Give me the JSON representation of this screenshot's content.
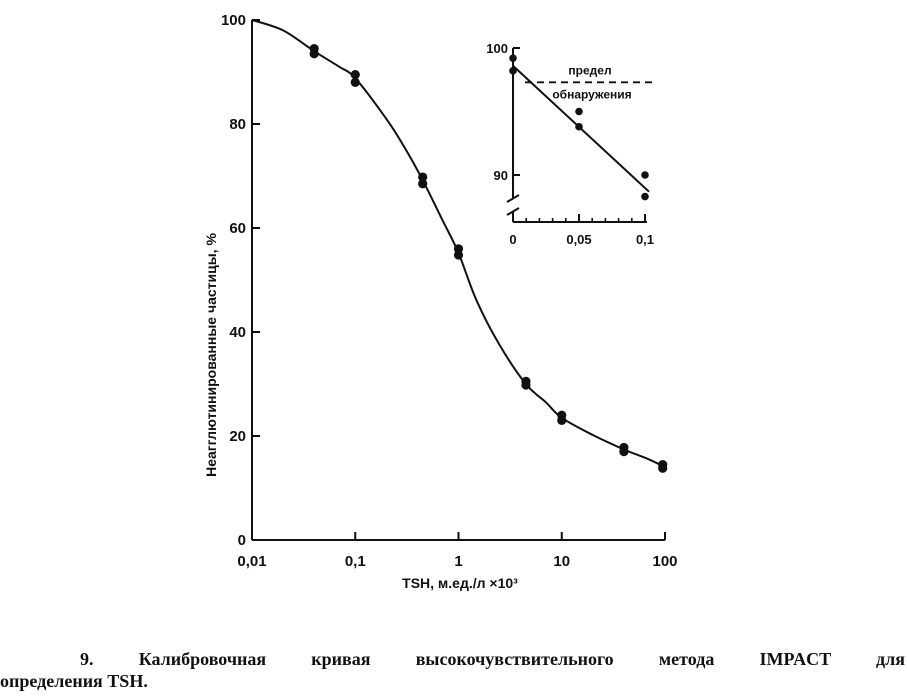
{
  "chart_data": [
    {
      "type": "line",
      "title": "",
      "xlabel": "TSH, м.ед./л ×10³",
      "ylabel": "Неагглютинированные частицы, %",
      "xscale": "log",
      "xlim": [
        0.01,
        100
      ],
      "ylim": [
        0,
        100
      ],
      "x_ticks": [
        0.01,
        0.1,
        1,
        10,
        100
      ],
      "x_tick_labels": [
        "0,01",
        "0,1",
        "1",
        "10",
        "100"
      ],
      "y_ticks": [
        0,
        20,
        40,
        60,
        80,
        100
      ],
      "y_tick_labels": [
        "0",
        "20",
        "40",
        "60",
        "80",
        "100"
      ],
      "grid": false,
      "legend": "none",
      "series": [
        {
          "kind": "scatter",
          "points": [
            [
              0.04,
              94.5
            ],
            [
              0.04,
              93.5
            ],
            [
              0.1,
              89.5
            ],
            [
              0.1,
              88.0
            ],
            [
              0.45,
              69.8
            ],
            [
              0.45,
              68.5
            ],
            [
              1,
              56.0
            ],
            [
              1,
              54.8
            ],
            [
              4.5,
              30.5
            ],
            [
              4.5,
              29.8
            ],
            [
              10,
              24.0
            ],
            [
              10,
              23.0
            ],
            [
              40,
              17.8
            ],
            [
              40,
              17.0
            ],
            [
              95,
              14.5
            ],
            [
              95,
              13.8
            ]
          ]
        },
        {
          "kind": "curve",
          "points": [
            [
              0.01,
              100
            ],
            [
              0.02,
              98.0
            ],
            [
              0.04,
              94.0
            ],
            [
              0.07,
              91.0
            ],
            [
              0.1,
              88.8
            ],
            [
              0.2,
              81.0
            ],
            [
              0.3,
              75.5
            ],
            [
              0.45,
              69.2
            ],
            [
              0.7,
              61.5
            ],
            [
              1,
              55.2
            ],
            [
              1.5,
              46.0
            ],
            [
              2.5,
              37.5
            ],
            [
              4.5,
              30.0
            ],
            [
              7,
              26.5
            ],
            [
              10,
              23.5
            ],
            [
              20,
              20.2
            ],
            [
              40,
              17.4
            ],
            [
              70,
              15.5
            ],
            [
              100,
              14.0
            ]
          ]
        }
      ]
    },
    {
      "type": "line",
      "title": "",
      "xlabel": "",
      "ylabel": "",
      "xlim": [
        0,
        0.1
      ],
      "ylim": [
        87,
        100
      ],
      "x_ticks": [
        0,
        0.05,
        0.1
      ],
      "x_tick_labels": [
        "0",
        "0,05",
        "0,1"
      ],
      "y_ticks": [
        90,
        100
      ],
      "y_tick_labels": [
        "90",
        "100"
      ],
      "axis_break": "y",
      "detection_limit": {
        "y": 97.3,
        "label_lines": [
          "предел",
          "обнаружения"
        ]
      },
      "series": [
        {
          "kind": "scatter",
          "points": [
            [
              0,
              99.2
            ],
            [
              0,
              98.2
            ],
            [
              0.05,
              95.0
            ],
            [
              0.05,
              93.8
            ],
            [
              0.1,
              90.0
            ],
            [
              0.1,
              88.3
            ]
          ]
        },
        {
          "kind": "fit",
          "points": [
            [
              0,
              98.6
            ],
            [
              0.1,
              89.0
            ]
          ]
        }
      ]
    }
  ],
  "caption": {
    "line1": "9. Калибровочная кривая высокочувствительного метода IMPACT для",
    "line2": "определения TSH."
  }
}
